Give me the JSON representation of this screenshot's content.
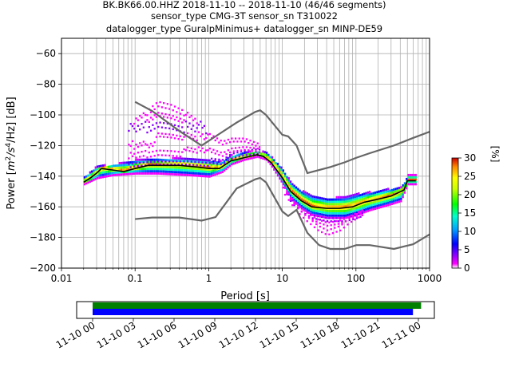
{
  "header": {
    "title_line1": "BK.BK66.00.HHZ   2018-11-10 -- 2018-11-10  (46/46 segments)",
    "title_line2": "sensor_type CMG-3T sensor_sn T310022",
    "title_line3": "datalogger_type GuralpMinimus+ datalogger_sn MINP-DE59"
  },
  "chart_data": {
    "type": "heatmap",
    "xlabel": "Period [s]",
    "ylabel_parts": [
      "Power [",
      "m",
      "2",
      "/s",
      "4",
      "/Hz] [dB]"
    ],
    "x_scale": "log",
    "xlim": [
      0.01,
      1000
    ],
    "ylim": [
      -200,
      -50
    ],
    "x_ticks": [
      {
        "value": 0.01,
        "label": "0.01"
      },
      {
        "value": 0.1,
        "label": "0.1"
      },
      {
        "value": 1,
        "label": "1"
      },
      {
        "value": 10,
        "label": "10"
      },
      {
        "value": 100,
        "label": "100"
      },
      {
        "value": 1000,
        "label": "1000"
      }
    ],
    "y_ticks": [
      -60,
      -80,
      -100,
      -120,
      -140,
      -160,
      -180,
      -200
    ],
    "grid": true,
    "noise_models": [
      {
        "name": "NHNM",
        "points": [
          [
            0.1,
            -91.5
          ],
          [
            0.17,
            -97.4
          ],
          [
            0.4,
            -110.5
          ],
          [
            0.8,
            -120
          ],
          [
            1.24,
            -114
          ],
          [
            2.4,
            -105
          ],
          [
            4.3,
            -98
          ],
          [
            5,
            -97
          ],
          [
            6,
            -100
          ],
          [
            10,
            -113
          ],
          [
            12,
            -114
          ],
          [
            15.6,
            -120
          ],
          [
            21.9,
            -138
          ],
          [
            31.6,
            -136
          ],
          [
            45,
            -134
          ],
          [
            70,
            -131
          ],
          [
            101,
            -128
          ],
          [
            154,
            -125
          ],
          [
            328,
            -120
          ],
          [
            600,
            -115
          ],
          [
            1000,
            -111
          ]
        ]
      },
      {
        "name": "NLNM",
        "points": [
          [
            0.1,
            -168
          ],
          [
            0.17,
            -167
          ],
          [
            0.4,
            -167
          ],
          [
            0.8,
            -169
          ],
          [
            1.24,
            -166.7
          ],
          [
            2.4,
            -148
          ],
          [
            4.3,
            -142
          ],
          [
            5,
            -141.1
          ],
          [
            6,
            -144
          ],
          [
            10,
            -163
          ],
          [
            12,
            -166
          ],
          [
            15.6,
            -162
          ],
          [
            21.9,
            -177
          ],
          [
            31.6,
            -185
          ],
          [
            45,
            -187.5
          ],
          [
            70,
            -187.5
          ],
          [
            101,
            -185
          ],
          [
            154,
            -185
          ],
          [
            328,
            -187.5
          ],
          [
            600,
            -184.4
          ],
          [
            1000,
            -178
          ]
        ]
      }
    ],
    "psd_mode": {
      "points": [
        [
          0.02,
          -144
        ],
        [
          0.025,
          -141
        ],
        [
          0.03,
          -138
        ],
        [
          0.035,
          -135
        ],
        [
          0.05,
          -136
        ],
        [
          0.07,
          -137
        ],
        [
          0.1,
          -135
        ],
        [
          0.15,
          -133
        ],
        [
          0.25,
          -133
        ],
        [
          0.4,
          -133
        ],
        [
          0.7,
          -134
        ],
        [
          1,
          -135
        ],
        [
          1.4,
          -135
        ],
        [
          2,
          -130
        ],
        [
          3,
          -128
        ],
        [
          4.5,
          -126
        ],
        [
          5.5,
          -127
        ],
        [
          7,
          -131
        ],
        [
          10,
          -141
        ],
        [
          13,
          -150
        ],
        [
          18,
          -156
        ],
        [
          25,
          -160
        ],
        [
          40,
          -161
        ],
        [
          60,
          -161
        ],
        [
          90,
          -160
        ],
        [
          130,
          -157
        ],
        [
          200,
          -155
        ],
        [
          300,
          -153
        ],
        [
          450,
          -149
        ],
        [
          500,
          -143
        ],
        [
          650,
          -143
        ]
      ]
    },
    "psd_spread": {
      "upper": [
        [
          0.02,
          -141
        ],
        [
          0.03,
          -134
        ],
        [
          0.05,
          -133
        ],
        [
          0.1,
          -130
        ],
        [
          0.2,
          -129
        ],
        [
          0.5,
          -129
        ],
        [
          1,
          -130
        ],
        [
          1.5,
          -131
        ],
        [
          2,
          -127
        ],
        [
          3,
          -125
        ],
        [
          4.5,
          -124
        ],
        [
          6,
          -125
        ],
        [
          7,
          -128
        ],
        [
          10,
          -136
        ],
        [
          13,
          -145
        ],
        [
          18,
          -150
        ],
        [
          25,
          -153
        ],
        [
          40,
          -155
        ],
        [
          70,
          -154
        ],
        [
          100,
          -152
        ],
        [
          150,
          -151
        ],
        [
          250,
          -149
        ],
        [
          400,
          -148
        ],
        [
          500,
          -140
        ],
        [
          650,
          -140
        ]
      ],
      "lower": [
        [
          0.02,
          -146
        ],
        [
          0.03,
          -142
        ],
        [
          0.05,
          -140
        ],
        [
          0.1,
          -139
        ],
        [
          0.2,
          -139
        ],
        [
          0.5,
          -140
        ],
        [
          1,
          -141
        ],
        [
          1.5,
          -138
        ],
        [
          2,
          -133
        ],
        [
          3,
          -130
        ],
        [
          4.5,
          -128
        ],
        [
          6,
          -130
        ],
        [
          7,
          -134
        ],
        [
          10,
          -146
        ],
        [
          13,
          -156
        ],
        [
          18,
          -162
        ],
        [
          25,
          -166
        ],
        [
          40,
          -168
        ],
        [
          70,
          -168
        ],
        [
          100,
          -166
        ],
        [
          150,
          -163
        ],
        [
          250,
          -160
        ],
        [
          400,
          -157
        ],
        [
          500,
          -146
        ],
        [
          650,
          -146
        ]
      ]
    },
    "psd_outliers": {
      "upper": [
        [
          0.08,
          -110
        ],
        [
          0.1,
          -104
        ],
        [
          0.15,
          -98
        ],
        [
          0.2,
          -93
        ],
        [
          0.3,
          -95
        ],
        [
          0.5,
          -100
        ],
        [
          0.8,
          -108
        ],
        [
          1,
          -115
        ],
        [
          1.5,
          -120
        ],
        [
          2,
          -118
        ],
        [
          3,
          -118
        ],
        [
          5,
          -122
        ]
      ],
      "lower": [
        [
          10,
          -150
        ],
        [
          15,
          -162
        ],
        [
          20,
          -168
        ],
        [
          30,
          -175
        ],
        [
          40,
          -178
        ],
        [
          60,
          -175
        ],
        [
          80,
          -170
        ],
        [
          120,
          -165
        ]
      ]
    },
    "colorbar": {
      "label": "[%]",
      "min": 0,
      "max": 30,
      "ticks": [
        0,
        5,
        10,
        15,
        20,
        25,
        30
      ]
    },
    "timeline": {
      "x_ticks": [
        "11-10 00",
        "11-10 03",
        "11-10 06",
        "11-10 09",
        "11-10 12",
        "11-10 15",
        "11-10 18",
        "11-10 21",
        "11-11 00"
      ],
      "bars": [
        {
          "color": "#008000",
          "start_hour": 0,
          "end_hour": 24.2
        },
        {
          "color": "#0000ff",
          "start_hour": 0,
          "end_hour": 23.6
        }
      ]
    }
  }
}
